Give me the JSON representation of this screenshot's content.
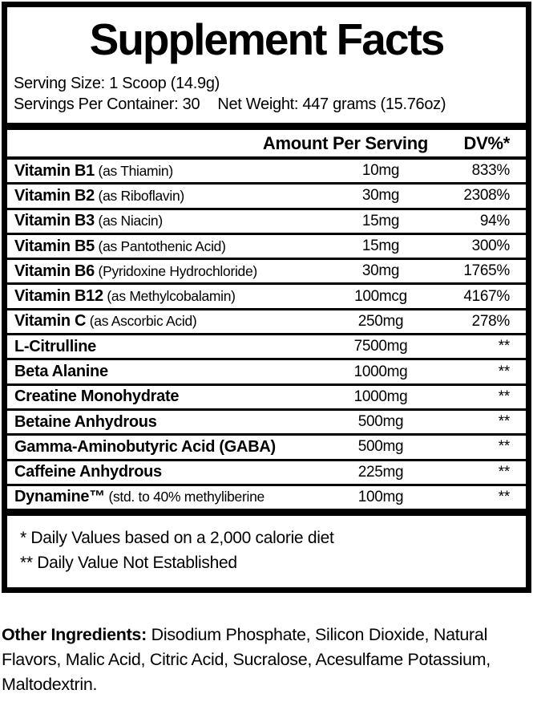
{
  "colors": {
    "ink": "#000000",
    "paper": "#ffffff"
  },
  "panel": {
    "title": "Supplement Facts",
    "serving_size": "Serving Size: 1 Scoop (14.9g)",
    "servings_per_container": "Servings Per Container: 30",
    "net_weight": "Net Weight: 447 grams (15.76oz)",
    "header": {
      "amount_label": "Amount Per Serving",
      "dv_label": "DV%*"
    },
    "rows": [
      {
        "name": "Vitamin B1",
        "detail": "(as Thiamin)",
        "amount": "10mg",
        "dv": "833%"
      },
      {
        "name": "Vitamin B2",
        "detail": "(as Riboflavin)",
        "amount": "30mg",
        "dv": "2308%"
      },
      {
        "name": "Vitamin B3",
        "detail": "(as Niacin)",
        "amount": "15mg",
        "dv": "94%"
      },
      {
        "name": "Vitamin B5",
        "detail": "(as Pantothenic Acid)",
        "amount": "15mg",
        "dv": "300%"
      },
      {
        "name": "Vitamin B6",
        "detail": "(Pyridoxine Hydrochloride)",
        "amount": "30mg",
        "dv": "1765%"
      },
      {
        "name": "Vitamin B12",
        "detail": "(as Methylcobalamin)",
        "amount": "100mcg",
        "dv": "4167%"
      },
      {
        "name": "Vitamin C",
        "detail": "(as Ascorbic Acid)",
        "amount": "250mg",
        "dv": "278%"
      },
      {
        "name": "L-Citrulline",
        "detail": "",
        "amount": "7500mg",
        "dv": "**"
      },
      {
        "name": "Beta Alanine",
        "detail": "",
        "amount": "1000mg",
        "dv": "**"
      },
      {
        "name": "Creatine Monohydrate",
        "detail": "",
        "amount": "1000mg",
        "dv": "**"
      },
      {
        "name": "Betaine Anhydrous",
        "detail": "",
        "amount": "500mg",
        "dv": "**"
      },
      {
        "name": "Gamma-Aminobutyric Acid (GABA)",
        "detail": "",
        "amount": "500mg",
        "dv": "**"
      },
      {
        "name": "Caffeine Anhydrous",
        "detail": "",
        "amount": "225mg",
        "dv": "**"
      },
      {
        "name": "Dynamine™",
        "detail": "(std. to 40% methyliberine",
        "amount": "100mg",
        "dv": "**"
      }
    ],
    "footnotes": [
      "* Daily Values based on a 2,000 calorie diet",
      "** Daily Value Not Established"
    ]
  },
  "other_ingredients": {
    "label": "Other Ingredients:",
    "text": "Disodium Phosphate, Silicon Dioxide, Natural Flavors, Malic Acid, Citric Acid, Sucralose, Acesulfame Potassium, Maltodextrin."
  }
}
